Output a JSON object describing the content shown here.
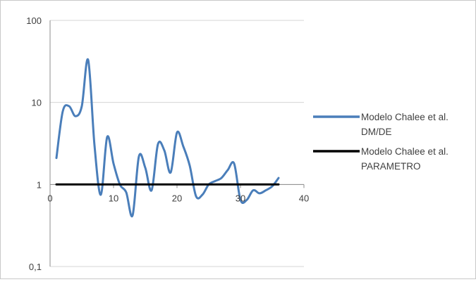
{
  "chart_data": {
    "type": "line",
    "title": "",
    "xlabel": "",
    "ylabel": "",
    "x_axis": {
      "min": 0,
      "max": 40,
      "ticks": [
        "0",
        "10",
        "20",
        "30",
        "40"
      ],
      "crosses_y_at": 1
    },
    "y_axis": {
      "scale": "log",
      "min": 0.1,
      "max": 100,
      "ticks": [
        "0,1",
        "1",
        "10",
        "100"
      ]
    },
    "grid": {
      "horizontal": true,
      "vertical": false
    },
    "legend_position": "right",
    "series": [
      {
        "name": "Modelo Chalee et al. DM/DE",
        "legend_lines": [
          "Modelo Chalee et al.",
          "DM/DE"
        ],
        "color": "#4a7eba",
        "smooth": true,
        "x": [
          1,
          2,
          3,
          4,
          5,
          6,
          7,
          8,
          9,
          10,
          11,
          12,
          13,
          14,
          15,
          16,
          17,
          18,
          19,
          20,
          21,
          22,
          23,
          24,
          25,
          26,
          27,
          28,
          29,
          30,
          31,
          32,
          33,
          34,
          35,
          36
        ],
        "values": [
          2.1,
          7.8,
          9.0,
          6.8,
          9.0,
          33.0,
          3.0,
          0.75,
          3.8,
          1.8,
          1.0,
          0.8,
          0.42,
          2.2,
          1.6,
          0.85,
          3.1,
          2.6,
          1.4,
          4.3,
          2.9,
          1.7,
          0.72,
          0.75,
          1.0,
          1.1,
          1.2,
          1.5,
          1.8,
          0.65,
          0.65,
          0.85,
          0.78,
          0.85,
          0.95,
          1.2
        ]
      },
      {
        "name": "Modelo Chalee et al. PARAMETRO",
        "legend_lines": [
          "Modelo Chalee et al.",
          "PARAMETRO"
        ],
        "color": "#000000",
        "smooth": false,
        "x": [
          1,
          36
        ],
        "values": [
          1,
          1
        ]
      }
    ]
  }
}
